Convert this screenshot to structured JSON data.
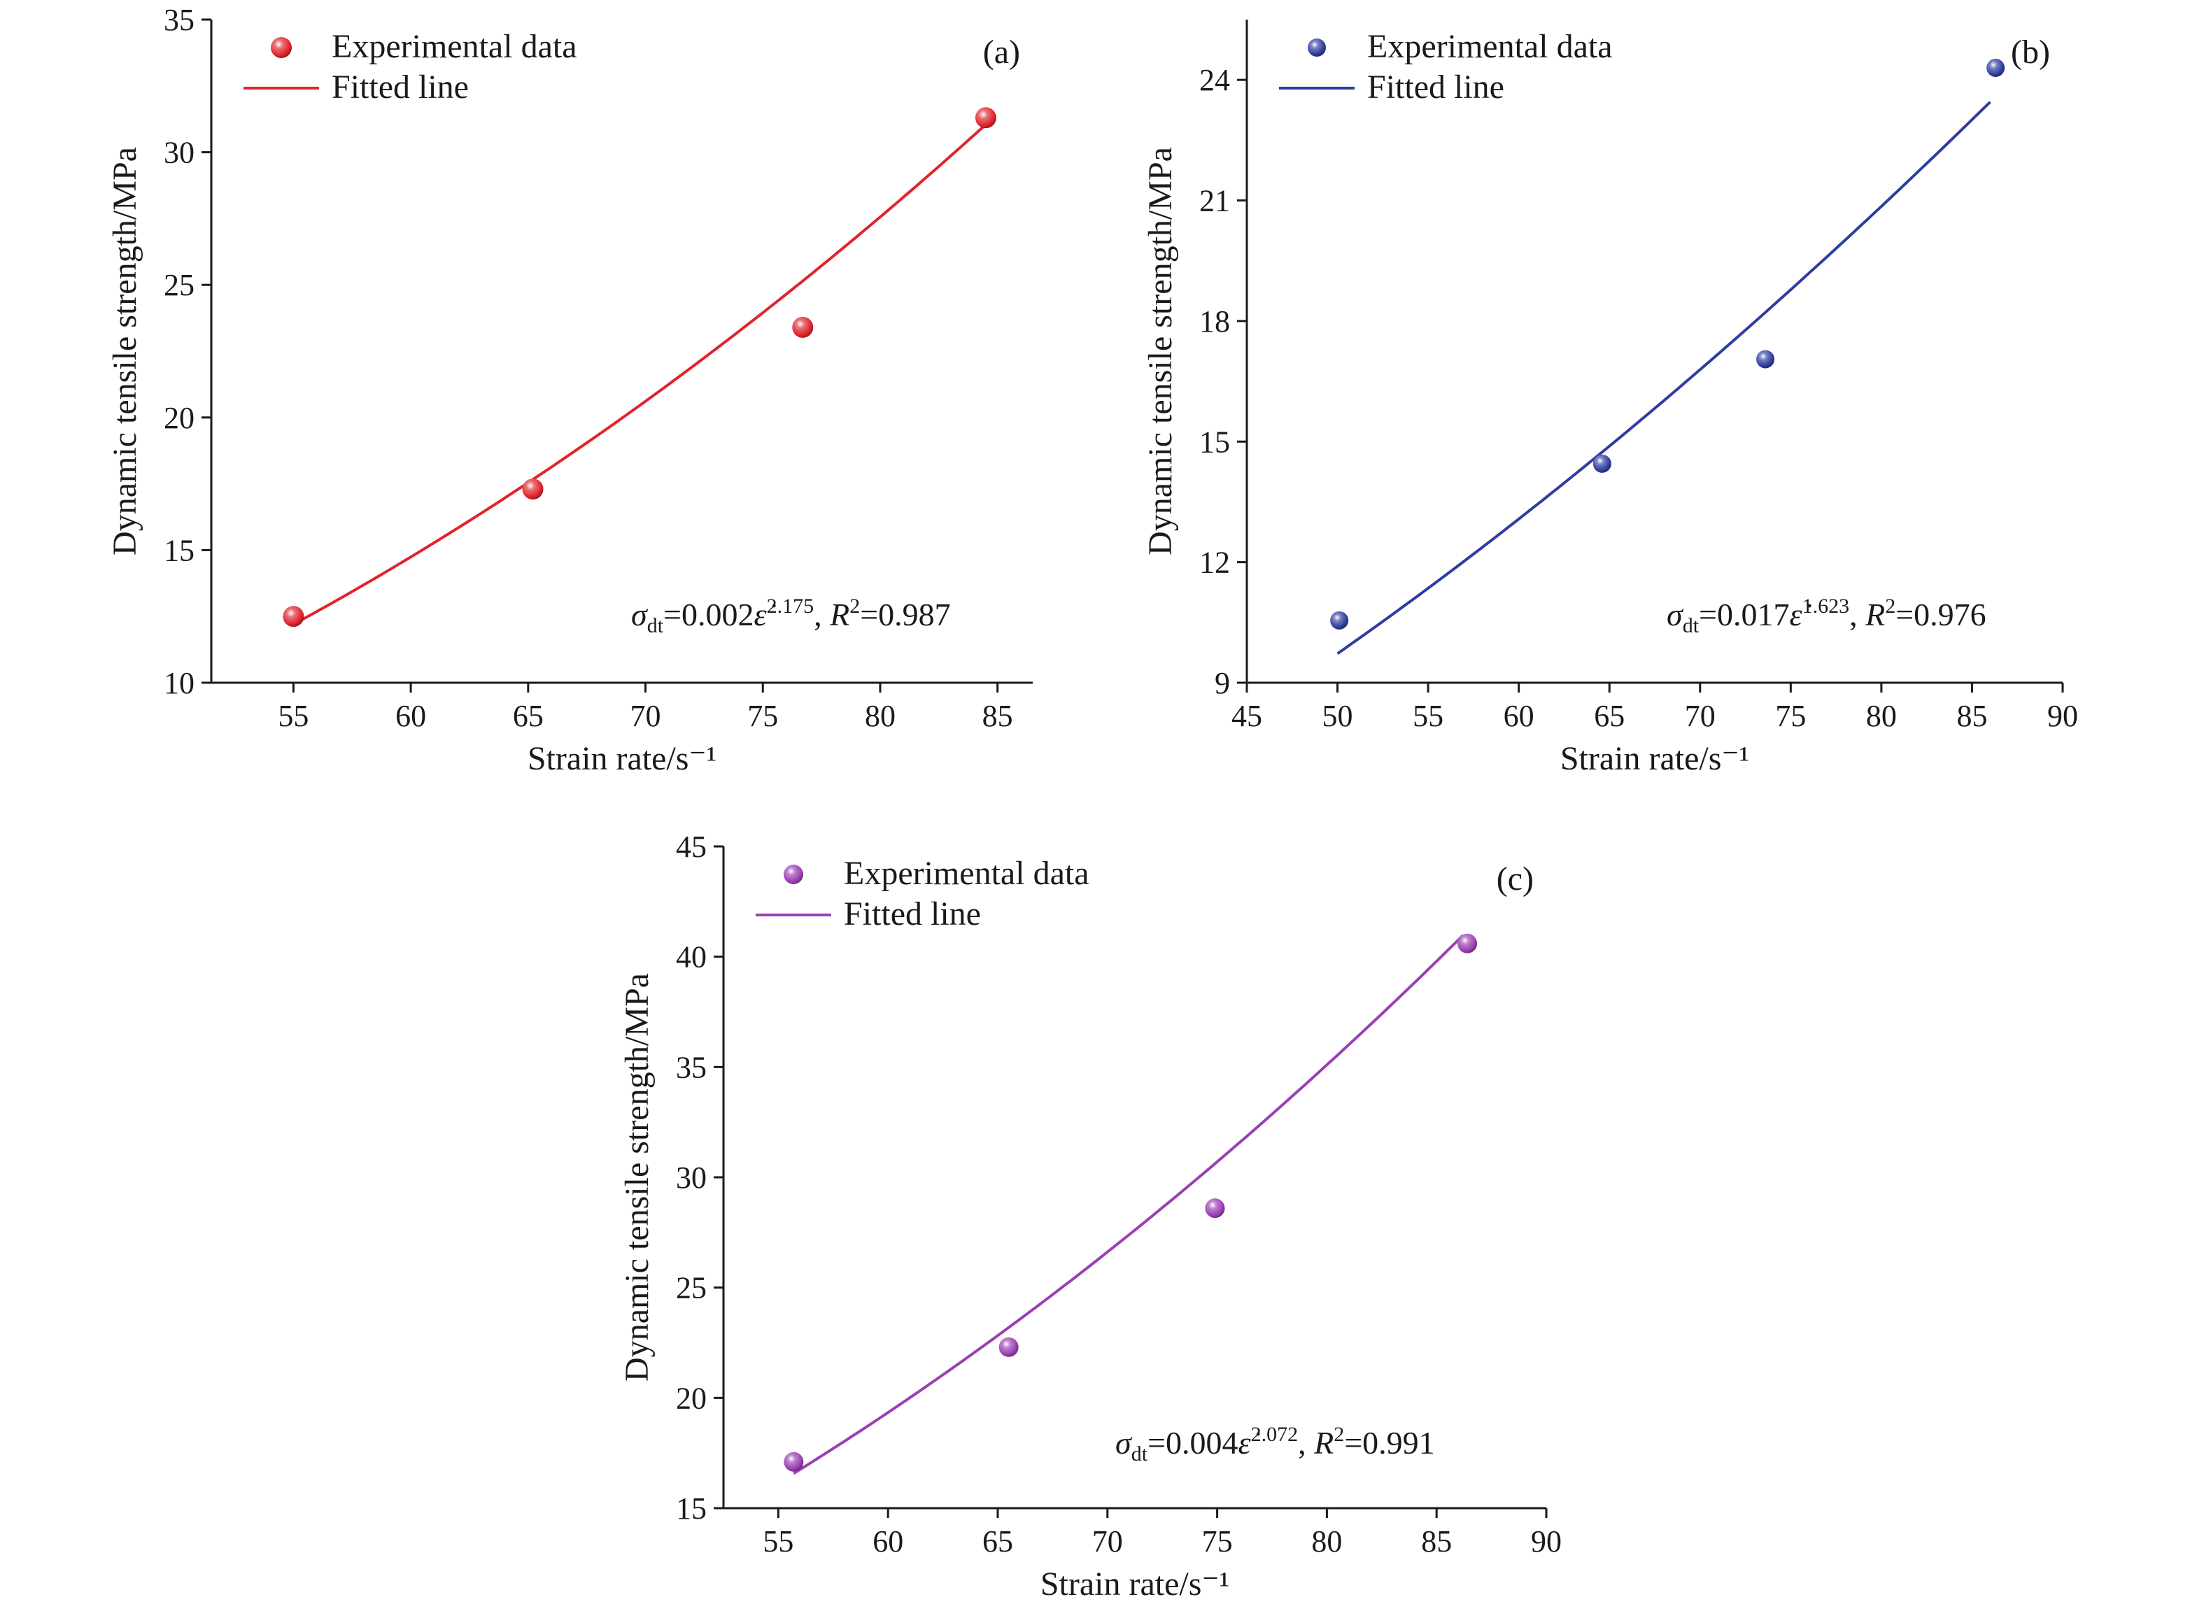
{
  "chart_data": [
    {
      "type": "scatter",
      "panel_label": "(a)",
      "xlabel": "Strain rate/s⁻¹",
      "ylabel": "Dynamic tensile strength/MPa",
      "xlim": [
        51.5,
        86.5
      ],
      "ylim": [
        10,
        35
      ],
      "xticks": [
        55,
        60,
        65,
        70,
        75,
        80,
        85
      ],
      "yticks": [
        10,
        15,
        20,
        25,
        30,
        35
      ],
      "color": "#e0242b",
      "legend": {
        "placement": "top-left",
        "markers_label": "Experimental data",
        "line_label": "Fitted line"
      },
      "series": [
        {
          "name": "Experimental data",
          "x": [
            55.0,
            65.2,
            76.7,
            84.5
          ],
          "y": [
            12.5,
            17.3,
            23.4,
            31.3
          ]
        },
        {
          "name": "Fitted line",
          "coef": 0.002,
          "exponent": 2.175,
          "x_range": [
            55.0,
            84.5
          ]
        }
      ],
      "annotation": {
        "sigma": "σ",
        "sub": "dt",
        "eq": "=0.002",
        "eps": "ε̇",
        "exp": "2.175",
        "comma": ", ",
        "r": "R",
        "r_exp": "2",
        "r_val": "=0.987"
      }
    },
    {
      "type": "scatter",
      "panel_label": "(b)",
      "xlabel": "Strain rate/s⁻¹",
      "ylabel": "Dynamic tensile strength/MPa",
      "xlim": [
        45,
        90
      ],
      "ylim": [
        9,
        25.5
      ],
      "xticks": [
        45,
        50,
        55,
        60,
        65,
        70,
        75,
        80,
        85,
        90
      ],
      "yticks": [
        9,
        12,
        15,
        18,
        21,
        24
      ],
      "color": "#2f3d9e",
      "legend": {
        "placement": "top-left",
        "markers_label": "Experimental data",
        "line_label": "Fitted line"
      },
      "series": [
        {
          "name": "Experimental data",
          "x": [
            50.1,
            64.6,
            73.6,
            86.3
          ],
          "y": [
            10.55,
            14.45,
            17.05,
            24.3
          ]
        },
        {
          "name": "Fitted line",
          "coef": 0.017,
          "exponent": 1.623,
          "x_range": [
            50.0,
            86.0
          ]
        }
      ],
      "annotation": {
        "sigma": "σ",
        "sub": "dt",
        "eq": "=0.017",
        "eps": "ε̇",
        "exp": "1.623",
        "comma": ", ",
        "r": "R",
        "r_exp": "2",
        "r_val": "=0.976"
      }
    },
    {
      "type": "scatter",
      "panel_label": "(c)",
      "xlabel": "Strain rate/s⁻¹",
      "ylabel": "Dynamic tensile strength/MPa",
      "xlim": [
        52.5,
        90
      ],
      "ylim": [
        15,
        45
      ],
      "xticks": [
        55,
        60,
        65,
        70,
        75,
        80,
        85,
        90
      ],
      "yticks": [
        15,
        20,
        25,
        30,
        35,
        40,
        45
      ],
      "color": "#9b3fb3",
      "legend": {
        "placement": "top-left",
        "markers_label": "Experimental data",
        "line_label": "Fitted line"
      },
      "series": [
        {
          "name": "Experimental data",
          "x": [
            55.7,
            65.5,
            74.9,
            86.4
          ],
          "y": [
            17.1,
            22.3,
            28.6,
            40.6
          ]
        },
        {
          "name": "Fitted line",
          "coef": 0.004,
          "exponent": 2.072,
          "x_range": [
            55.7,
            86.2
          ]
        }
      ],
      "annotation": {
        "sigma": "σ",
        "sub": "dt",
        "eq": "=0.004",
        "eps": "ε̇",
        "exp": "2.072",
        "comma": ", ",
        "r": "R",
        "r_exp": "2",
        "r_val": "=0.991"
      }
    }
  ]
}
